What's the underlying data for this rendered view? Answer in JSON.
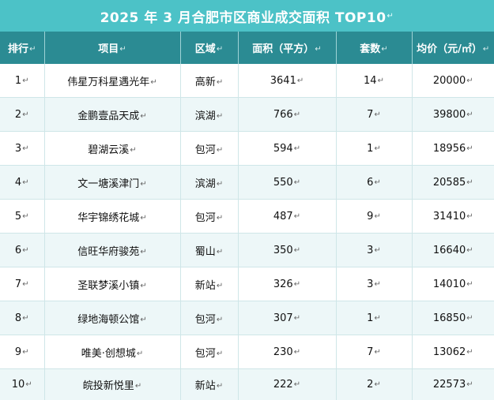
{
  "title": "2025 年 3 月合肥市区商业成交面积 TOP10",
  "paragraph_mark": "↵",
  "headers": [
    "排行",
    "项目",
    "区域",
    "面积（平方）",
    "套数",
    "均价（元/㎡）"
  ],
  "rows": [
    [
      "1",
      "伟星万科星遇光年",
      "高新",
      "3641",
      "14",
      "20000"
    ],
    [
      "2",
      "金鹏壹品天成",
      "滨湖",
      "766",
      "7",
      "39800"
    ],
    [
      "3",
      "碧湖云溪",
      "包河",
      "594",
      "1",
      "18956"
    ],
    [
      "4",
      "文一塘溪津门",
      "滨湖",
      "550",
      "6",
      "20585"
    ],
    [
      "5",
      "华宇锦绣花城",
      "包河",
      "487",
      "9",
      "31410"
    ],
    [
      "6",
      "信旺华府骏苑",
      "蜀山",
      "350",
      "3",
      "16640"
    ],
    [
      "7",
      "圣联梦溪小镇",
      "新站",
      "326",
      "3",
      "14010"
    ],
    [
      "8",
      "绿地海顿公馆",
      "包河",
      "307",
      "1",
      "16850"
    ],
    [
      "9",
      "唯美·创想城",
      "包河",
      "230",
      "7",
      "13062"
    ],
    [
      "10",
      "皖投新悦里",
      "新站",
      "222",
      "2",
      "22573"
    ]
  ]
}
